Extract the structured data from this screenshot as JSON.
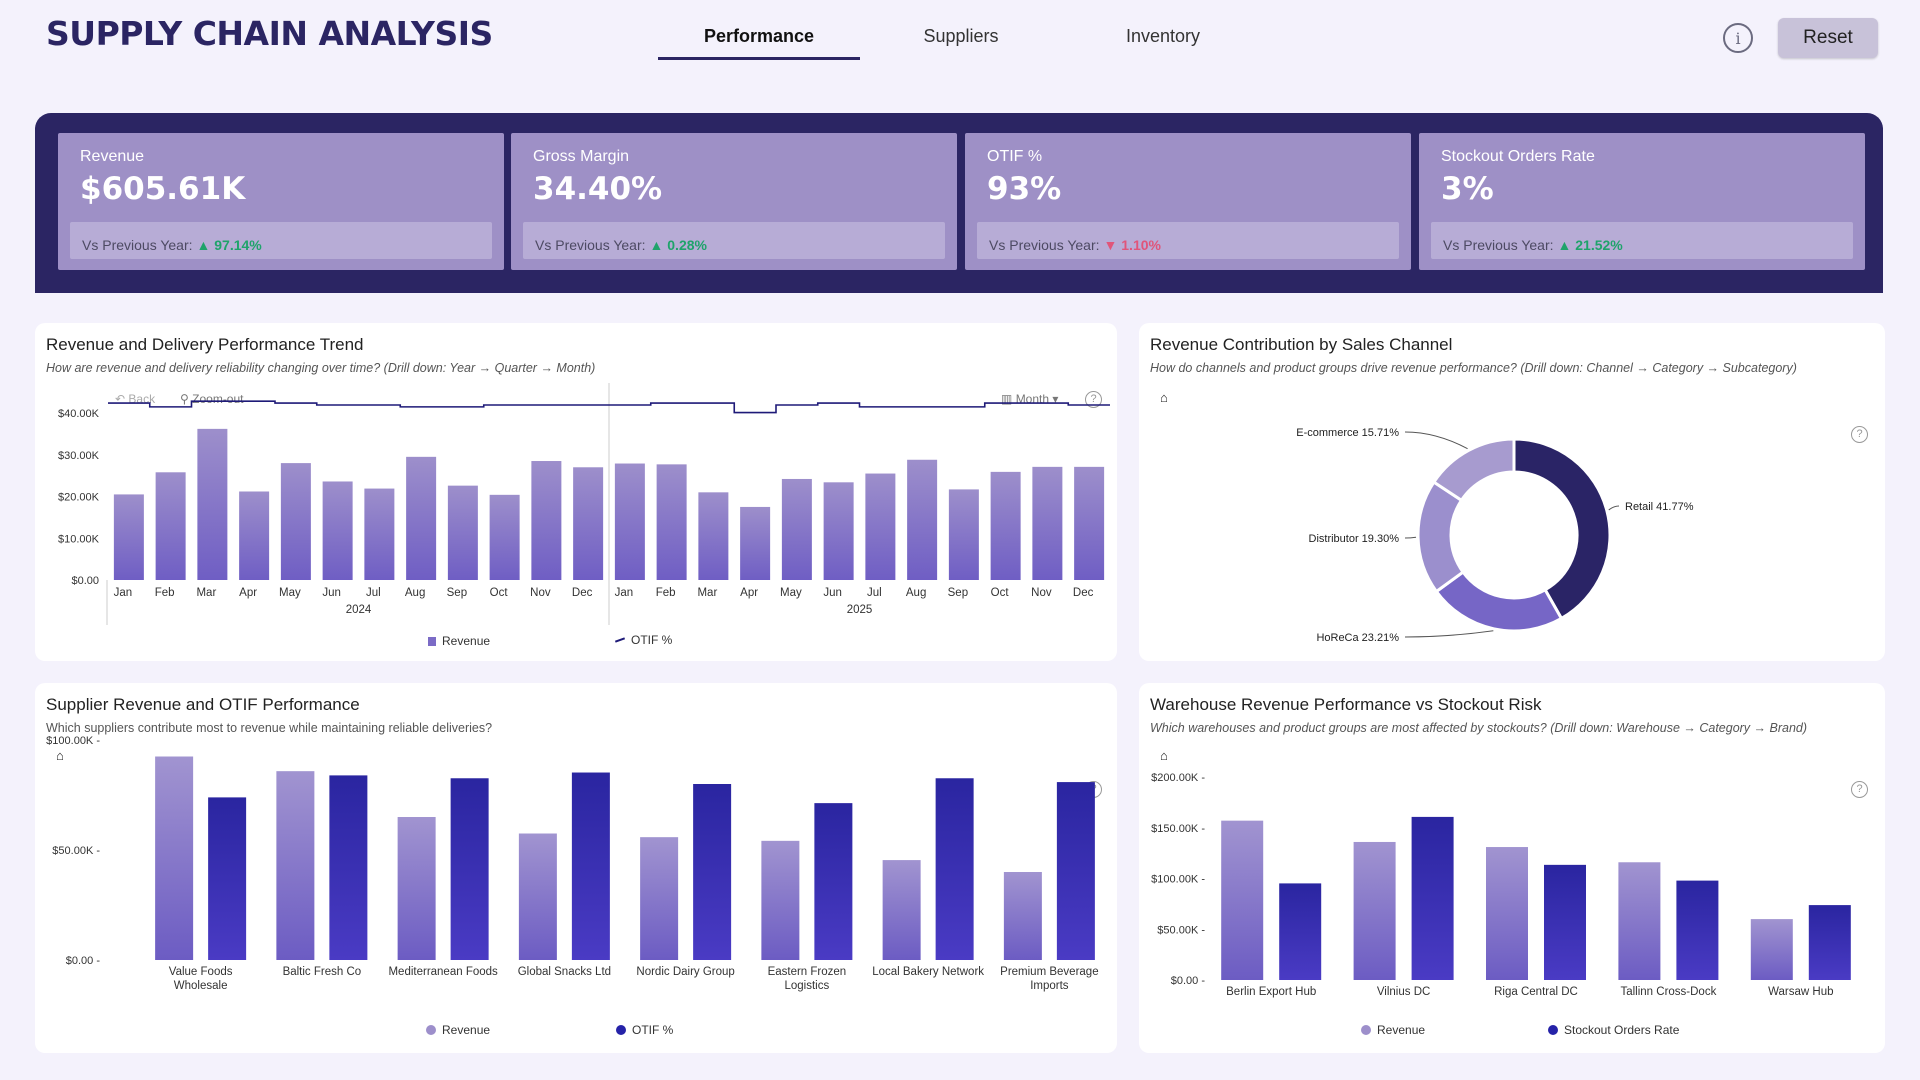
{
  "header": {
    "title": "SUPPLY CHAIN ANALYSIS",
    "tabs": [
      "Performance",
      "Suppliers",
      "Inventory"
    ],
    "active_tab": "Performance",
    "info_icon": "info-icon",
    "reset_label": "Reset"
  },
  "colors": {
    "brand_dark": "#2b2563",
    "kpi_card": "#9e90c6",
    "bar_light": "#9d8fcb",
    "bar_dark": "#2522a8",
    "positive": "#1fa36b",
    "negative": "#e0557a"
  },
  "kpis": [
    {
      "label": "Revenue",
      "value": "$605.61K",
      "compare_label": "Vs Previous Year:",
      "direction": "up",
      "arrow": "▲",
      "delta": "97.14%"
    },
    {
      "label": "Gross Margin",
      "value": "34.40%",
      "compare_label": "Vs Previous Year:",
      "direction": "up",
      "arrow": "▲",
      "delta": "0.28%"
    },
    {
      "label": "OTIF %",
      "value": "93%",
      "compare_label": "Vs Previous Year:",
      "direction": "down",
      "arrow": "▼",
      "delta": "1.10%"
    },
    {
      "label": "Stockout Orders Rate",
      "value": "3%",
      "compare_label": "Vs Previous Year:",
      "direction": "up",
      "arrow": "▲",
      "delta": "21.52%"
    }
  ],
  "trend": {
    "title": "Revenue and Delivery Performance Trend",
    "subtitle": "How are revenue and delivery reliability changing over time? (Drill down: Year → Quarter → Month)",
    "back_label": "Back",
    "zoom_label": "Zoom-out",
    "granularity_label": "Month",
    "legend_revenue": "Revenue",
    "legend_otif": "OTIF %"
  },
  "channel": {
    "title": "Revenue Contribution by Sales Channel",
    "subtitle": "How do channels and product groups drive revenue performance? (Drill down: Channel → Category → Subcategory)"
  },
  "supplier": {
    "title": "Supplier Revenue and OTIF Performance",
    "subtitle": "Which suppliers contribute most to revenue while maintaining reliable deliveries?",
    "legend_revenue": "Revenue",
    "legend_otif": "OTIF %"
  },
  "warehouse": {
    "title": "Warehouse Revenue Performance vs Stockout Risk",
    "subtitle": "Which warehouses and product groups are most affected by stockouts? (Drill down: Warehouse → Category → Brand)",
    "legend_revenue": "Revenue",
    "legend_stockout": "Stockout Orders Rate"
  },
  "chart_data": [
    {
      "type": "bar",
      "title": "Revenue and Delivery Performance Trend",
      "categories": [
        "Jan",
        "Feb",
        "Mar",
        "Apr",
        "May",
        "Jun",
        "Jul",
        "Aug",
        "Sep",
        "Oct",
        "Nov",
        "Dec",
        "Jan",
        "Feb",
        "Mar",
        "Apr",
        "May",
        "Jun",
        "Jul",
        "Aug",
        "Sep",
        "Oct",
        "Nov",
        "Dec"
      ],
      "year_labels": [
        "2024",
        "2025"
      ],
      "y_ticks": [
        "$0.00",
        "$10.00K",
        "$20.00K",
        "$30.00K",
        "$40.00K"
      ],
      "ylim": [
        0,
        40000
      ],
      "series": [
        {
          "name": "Revenue",
          "type": "bar",
          "values": [
            20500,
            25800,
            36200,
            21200,
            28000,
            23600,
            21900,
            29500,
            22600,
            20400,
            28500,
            27000,
            27900,
            27700,
            21000,
            17500,
            24200,
            23400,
            25500,
            28800,
            21700,
            25900,
            27100,
            27100
          ]
        },
        {
          "name": "OTIF %",
          "type": "line",
          "values": [
            0.94,
            0.92,
            0.95,
            0.95,
            0.94,
            0.93,
            0.93,
            0.92,
            0.92,
            0.93,
            0.93,
            0.93,
            0.93,
            0.94,
            0.94,
            0.89,
            0.93,
            0.94,
            0.92,
            0.92,
            0.92,
            0.94,
            0.94,
            0.93
          ],
          "ylim": [
            0,
            1.1
          ]
        }
      ]
    },
    {
      "type": "pie",
      "title": "Revenue Contribution by Sales Channel",
      "slices": [
        {
          "label": "Retail 41.77%",
          "value": 41.77,
          "color": "#2a2466"
        },
        {
          "label": "HoReCa 23.21%",
          "value": 23.21,
          "color": "#7666c6"
        },
        {
          "label": "Distributor 19.30%",
          "value": 19.3,
          "color": "#9b8fcd"
        },
        {
          "label": "E-commerce 15.71%",
          "value": 15.71,
          "color": "#a79bcf"
        }
      ]
    },
    {
      "type": "bar",
      "title": "Supplier Revenue and OTIF Performance",
      "categories": [
        [
          "Value Foods",
          "Wholesale"
        ],
        [
          "Baltic Fresh Co"
        ],
        [
          "Mediterranean Foods"
        ],
        [
          "Global Snacks Ltd"
        ],
        [
          "Nordic Dairy Group"
        ],
        [
          "Eastern Frozen",
          "Logistics"
        ],
        [
          "Local Bakery Network"
        ],
        [
          "Premium Beverage",
          "Imports"
        ]
      ],
      "y_ticks": [
        "$0.00",
        "$50.00K",
        "$100.00K"
      ],
      "ylim": [
        0,
        120000
      ],
      "series": [
        {
          "name": "Revenue",
          "values": [
            111000,
            103000,
            78000,
            69000,
            67000,
            65000,
            54500,
            48000
          ]
        },
        {
          "name": "OTIF %",
          "values": [
            0.85,
            0.965,
            0.95,
            0.98,
            0.92,
            0.82,
            0.95,
            0.93
          ],
          "ylim": [
            0,
            1.15
          ]
        }
      ]
    },
    {
      "type": "bar",
      "title": "Warehouse Revenue Performance vs Stockout Risk",
      "categories": [
        "Berlin Export Hub",
        "Vilnius DC",
        "Riga Central DC",
        "Tallinn Cross-Dock",
        "Warsaw Hub"
      ],
      "y_ticks": [
        "$0.00",
        "$50.00K",
        "$100.00K",
        "$150.00K",
        "$200.00K"
      ],
      "ylim": [
        0,
        200000
      ],
      "series": [
        {
          "name": "Revenue",
          "values": [
            157000,
            136000,
            131000,
            116000,
            60000
          ]
        },
        {
          "name": "Stockout Orders Rate",
          "values": [
            0.0276,
            0.0466,
            0.0329,
            0.0284,
            0.0214
          ],
          "ylim": [
            0,
            0.058
          ]
        }
      ]
    }
  ]
}
